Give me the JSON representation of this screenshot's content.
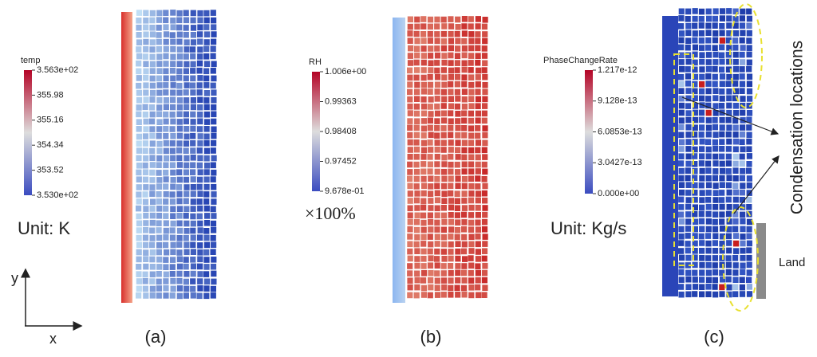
{
  "axes": {
    "y": "y",
    "x": "x"
  },
  "panels": [
    {
      "label": "(a)",
      "colorbar": {
        "title": "temp",
        "ticks": [
          "3.563e+02",
          "355.98",
          "355.16",
          "354.34",
          "353.52",
          "3.530e+02"
        ]
      },
      "unit": "Unit: K"
    },
    {
      "label": "(b)",
      "colorbar": {
        "title": "RH",
        "ticks": [
          "1.006e+00",
          "0.99363",
          "0.98408",
          "0.97452",
          "9.678e-01"
        ]
      },
      "unit": "×100%"
    },
    {
      "label": "(c)",
      "colorbar": {
        "title": "PhaseChangeRate",
        "ticks": [
          "1.217e-12",
          "9.128e-13",
          "6.0853e-13",
          "3.0427e-13",
          "0.000e+00"
        ]
      },
      "unit": "Unit: Kg/s",
      "annotations": [
        "Condensation locations",
        "Land"
      ]
    }
  ]
}
